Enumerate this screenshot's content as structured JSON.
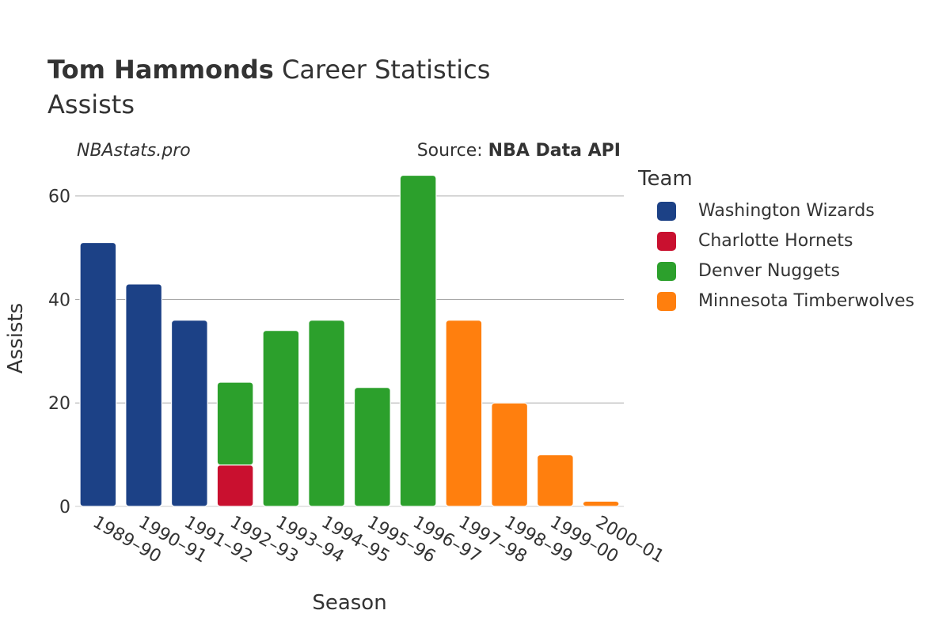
{
  "header": {
    "player_name": "Tom Hammonds",
    "title_suffix": " Career Statistics",
    "subtitle": "Assists",
    "site": "NBAstats.pro",
    "source_prefix": "Source: ",
    "source_name": "NBA Data API"
  },
  "legend": {
    "title": "Team",
    "items": [
      {
        "label": "Washington Wizards",
        "color": "#1c4186"
      },
      {
        "label": "Charlotte Hornets",
        "color": "#c9102f"
      },
      {
        "label": "Denver Nuggets",
        "color": "#2ca02c"
      },
      {
        "label": "Minnesota Timberwolves",
        "color": "#ff7f0e"
      }
    ]
  },
  "chart_data": {
    "type": "bar",
    "stacked": true,
    "xlabel": "Season",
    "ylabel": "Assists",
    "ylim": [
      0,
      65
    ],
    "yticks": [
      0,
      20,
      40,
      60
    ],
    "categories": [
      "1989–90",
      "1990–91",
      "1991–92",
      "1992–93",
      "1993–94",
      "1994–95",
      "1995–96",
      "1996–97",
      "1997–98",
      "1998–99",
      "1999–00",
      "2000–01"
    ],
    "series": [
      {
        "name": "Washington Wizards",
        "color": "#1c4186",
        "values": [
          51,
          43,
          36,
          0,
          0,
          0,
          0,
          0,
          0,
          0,
          0,
          0
        ]
      },
      {
        "name": "Charlotte Hornets",
        "color": "#c9102f",
        "values": [
          0,
          0,
          0,
          8,
          0,
          0,
          0,
          0,
          0,
          0,
          0,
          0
        ]
      },
      {
        "name": "Denver Nuggets",
        "color": "#2ca02c",
        "values": [
          0,
          0,
          0,
          16,
          34,
          36,
          23,
          64,
          0,
          0,
          0,
          0
        ]
      },
      {
        "name": "Minnesota Timberwolves",
        "color": "#ff7f0e",
        "values": [
          0,
          0,
          0,
          0,
          0,
          0,
          0,
          0,
          36,
          20,
          10,
          1
        ]
      }
    ],
    "grid": true,
    "legend_position": "right"
  }
}
